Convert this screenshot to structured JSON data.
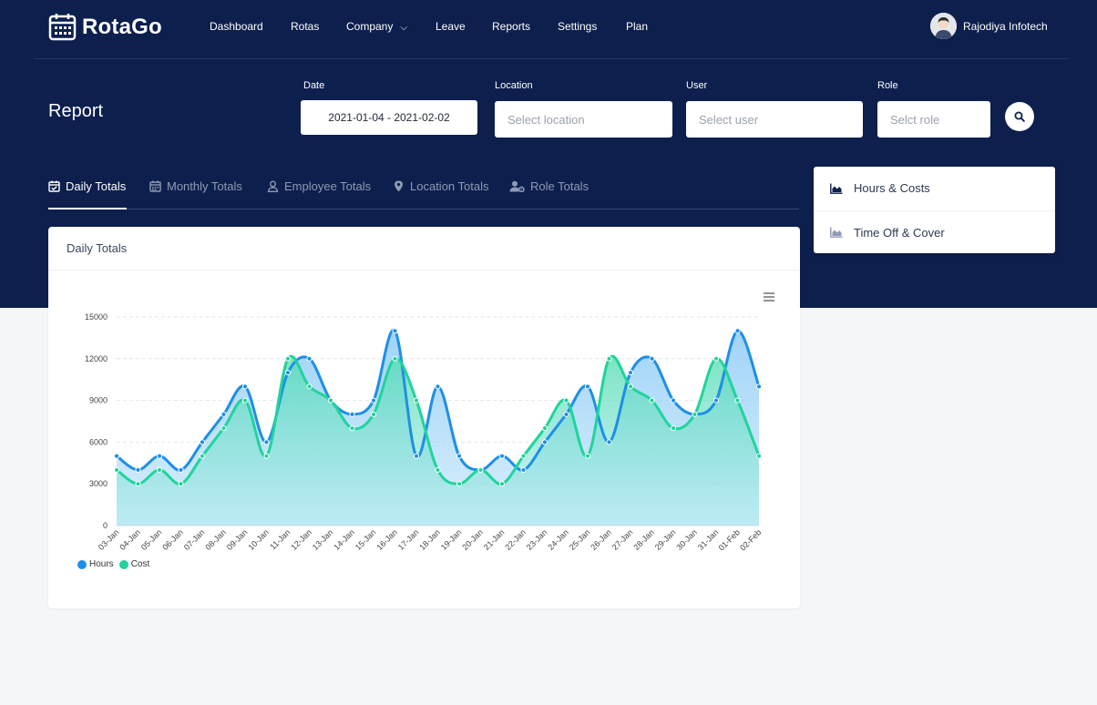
{
  "app": {
    "name": "RotaGo"
  },
  "nav": {
    "items": [
      {
        "label": "Dashboard"
      },
      {
        "label": "Rotas"
      },
      {
        "label": "Company"
      },
      {
        "label": "Leave"
      },
      {
        "label": "Reports"
      },
      {
        "label": "Settings"
      },
      {
        "label": "Plan"
      }
    ],
    "user_name": "Rajodiya Infotech"
  },
  "page": {
    "title": "Report"
  },
  "filters": {
    "date_label": "Date",
    "date_value": "2021-01-04 - 2021-02-02",
    "location_label": "Location",
    "location_placeholder": "Select location",
    "user_label": "User",
    "user_placeholder": "Select user",
    "role_label": "Role",
    "role_placeholder": "Selct role"
  },
  "tabs": [
    {
      "label": "Daily Totals",
      "icon": "calendar-check-icon",
      "active": true
    },
    {
      "label": "Monthly Totals",
      "icon": "calendar-icon"
    },
    {
      "label": "Employee Totals",
      "icon": "user-icon"
    },
    {
      "label": "Location Totals",
      "icon": "map-marker-icon"
    },
    {
      "label": "Role Totals",
      "icon": "users-cog-icon"
    }
  ],
  "side_menu": [
    {
      "label": "Hours & Costs",
      "icon": "area-chart-icon"
    },
    {
      "label": "Time Off & Cover",
      "icon": "area-chart-icon"
    }
  ],
  "card": {
    "title": "Daily Totals"
  },
  "colors": {
    "header_bg": "#0d1f4d",
    "hours": "#1e8fe6",
    "cost": "#22d39c"
  },
  "chart_data": {
    "type": "area",
    "x": [
      "03-Jan",
      "04-Jan",
      "05-Jan",
      "06-Jan",
      "07-Jan",
      "08-Jan",
      "09-Jan",
      "10-Jan",
      "11-Jan",
      "12-Jan",
      "13-Jan",
      "14-Jan",
      "15-Jan",
      "16-Jan",
      "17-Jan",
      "18-Jan",
      "19-Jan",
      "20-Jan",
      "21-Jan",
      "22-Jan",
      "23-Jan",
      "24-Jan",
      "25-Jan",
      "26-Jan",
      "27-Jan",
      "28-Jan",
      "29-Jan",
      "30-Jan",
      "31-Jan",
      "01-Feb",
      "02-Feb"
    ],
    "series": [
      {
        "name": "Hours",
        "color": "#1e8fe6",
        "values": [
          5000,
          4000,
          5000,
          4000,
          6000,
          8000,
          10000,
          6000,
          11000,
          12000,
          9000,
          8000,
          9000,
          14000,
          5000,
          10000,
          5000,
          4000,
          5000,
          4000,
          6000,
          8000,
          10000,
          6000,
          11000,
          12000,
          9000,
          8000,
          9000,
          14000,
          10000
        ]
      },
      {
        "name": "Cost",
        "color": "#22d39c",
        "values": [
          4000,
          3000,
          4000,
          3000,
          5000,
          7000,
          9000,
          5000,
          12000,
          10000,
          9000,
          7000,
          8000,
          12000,
          9000,
          4000,
          3000,
          4000,
          3000,
          5000,
          7000,
          9000,
          5000,
          12000,
          10000,
          9000,
          7000,
          8000,
          12000,
          9000,
          5000
        ]
      }
    ],
    "yticks": [
      0,
      3000,
      6000,
      9000,
      12000,
      15000
    ],
    "ylim": [
      0,
      15000
    ],
    "grid": true,
    "legend": "bottom-left"
  }
}
